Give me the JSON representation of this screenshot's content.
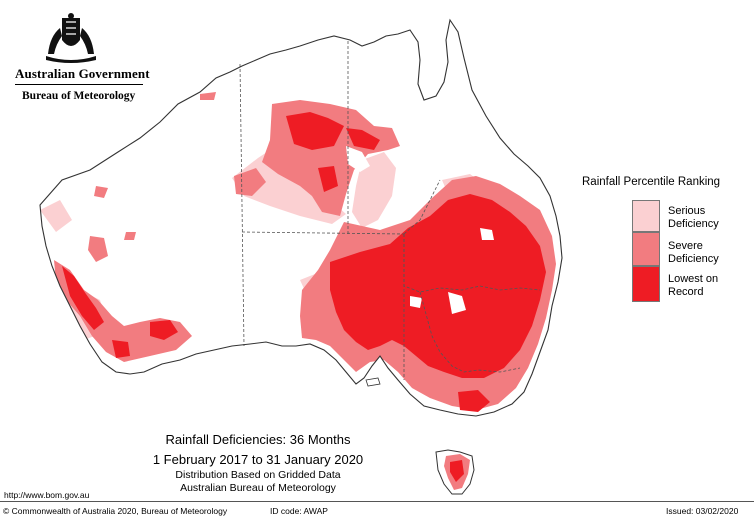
{
  "header": {
    "government": "Australian Government",
    "bureau": "Bureau of Meteorology"
  },
  "legend": {
    "title": "Rainfall Percentile Ranking",
    "items": [
      {
        "line1": "Serious",
        "line2": "Deficiency",
        "color": "#fbd0d2"
      },
      {
        "line1": "Severe",
        "line2": "Deficiency",
        "color": "#f27c80"
      },
      {
        "line1": "Lowest on",
        "line2": "Record",
        "color": "#ee1c24"
      }
    ]
  },
  "caption": {
    "title": "Rainfall Deficiencies: 36 Months",
    "period": "1 February 2017 to 31 January 2020",
    "line1": "Distribution Based on Gridded Data",
    "line2": "Australian Bureau of Meteorology"
  },
  "footer": {
    "url": "http://www.bom.gov.au",
    "copyright": "© Commonwealth of Australia 2020, Bureau of Meteorology",
    "id_code": "ID code: AWAP",
    "issued": "Issued: 03/02/2020"
  },
  "colors": {
    "outline": "#333333",
    "serious": "#fbd0d2",
    "severe": "#f27c80",
    "lowest": "#ee1c24"
  }
}
